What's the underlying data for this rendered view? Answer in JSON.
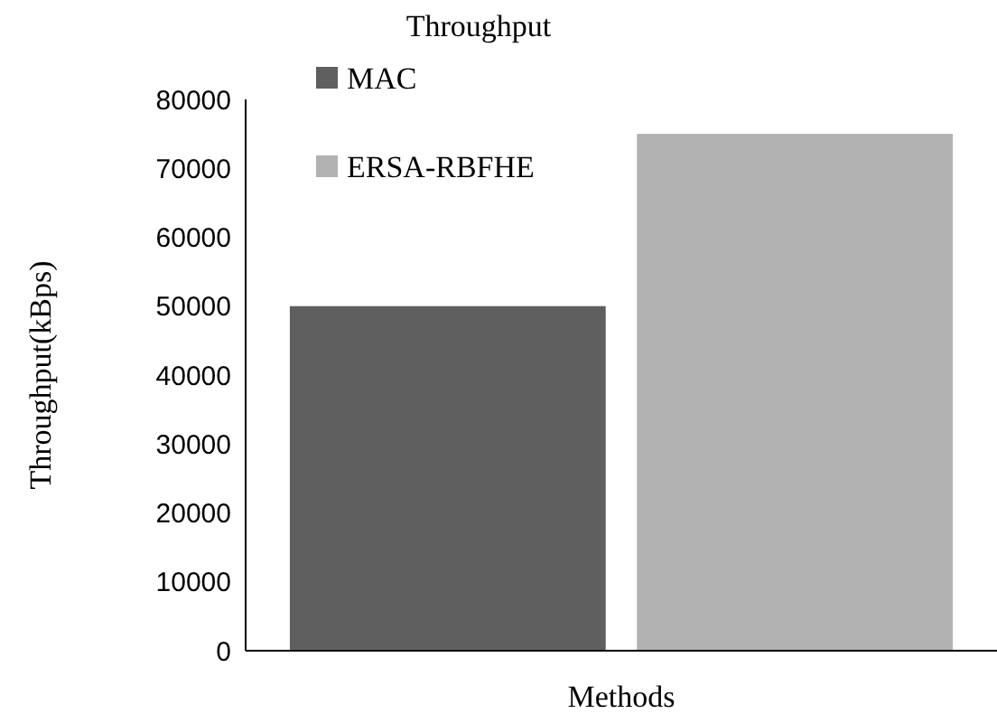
{
  "chart_data": {
    "type": "bar",
    "title": "Throughput",
    "xlabel": "Methods",
    "ylabel": "Throughput(kBps)",
    "categories": [
      null
    ],
    "series": [
      {
        "name": "MAC",
        "color": "#5f5f5f",
        "values": [
          50000
        ]
      },
      {
        "name": "ERSA-RBFHE",
        "color": "#b2b2b2",
        "values": [
          75000
        ]
      }
    ],
    "ylim": [
      0,
      80000
    ],
    "yticks": [
      0,
      10000,
      20000,
      30000,
      40000,
      50000,
      60000,
      70000,
      80000
    ],
    "legend": "top left",
    "grid": false
  }
}
